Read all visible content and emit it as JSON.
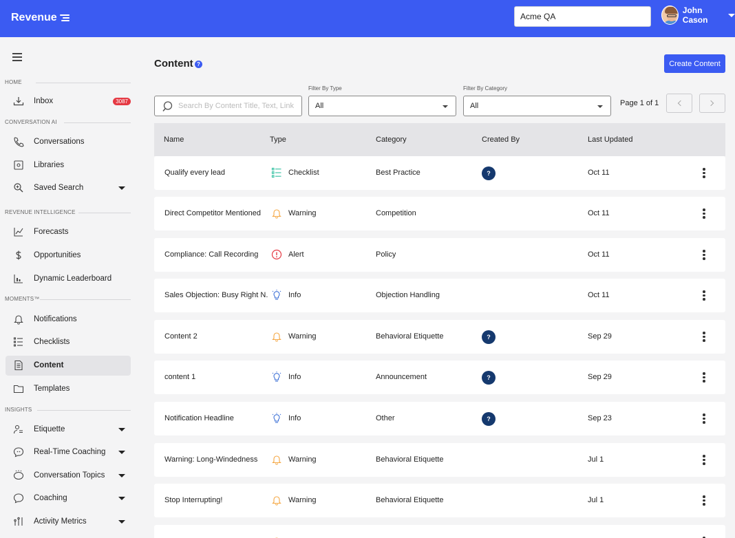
{
  "header": {
    "logo_text": "Revenue",
    "org_value": "Acme QA",
    "user_name": "John Cason"
  },
  "sidebar": {
    "sections": [
      "HOME",
      "CONVERSATION AI",
      "REVENUE INTELLIGENCE",
      "MOMENTS™",
      "INSIGHTS"
    ],
    "items": [
      {
        "label": "Inbox",
        "icon": "inbox-icon",
        "badge": "3087"
      },
      {
        "label": "Conversations",
        "icon": "phone-icon"
      },
      {
        "label": "Libraries",
        "icon": "library-icon"
      },
      {
        "label": "Saved Search",
        "icon": "search-icon",
        "has_caret": true
      },
      {
        "label": "Forecasts",
        "icon": "line-chart-icon"
      },
      {
        "label": "Opportunities",
        "icon": "dollar-icon"
      },
      {
        "label": "Dynamic Leaderboard",
        "icon": "bar-chart-icon"
      },
      {
        "label": "Notifications",
        "icon": "bell-icon"
      },
      {
        "label": "Checklists",
        "icon": "checklist-icon"
      },
      {
        "label": "Content",
        "icon": "document-icon",
        "active": true
      },
      {
        "label": "Templates",
        "icon": "folder-icon"
      },
      {
        "label": "Etiquette",
        "icon": "etiquette-icon",
        "has_caret": true
      },
      {
        "label": "Real-Time Coaching",
        "icon": "chat-icon",
        "has_caret": true
      },
      {
        "label": "Conversation Topics",
        "icon": "topics-icon",
        "has_caret": true
      },
      {
        "label": "Coaching",
        "icon": "coaching-icon",
        "has_caret": true
      },
      {
        "label": "Activity Metrics",
        "icon": "metrics-icon",
        "has_caret": true
      }
    ]
  },
  "main": {
    "title": "Content",
    "create_button": "Create Content",
    "search_placeholder": "Search By Content Title, Text, Link",
    "filter_type_label": "Filter By Type",
    "filter_type_value": "All",
    "filter_category_label": "Filter By Category",
    "filter_category_value": "All",
    "page_info": "Page 1 of 1"
  },
  "table": {
    "columns": [
      "Name",
      "Type",
      "Category",
      "Created By",
      "Last Updated"
    ],
    "rows": [
      {
        "name": "Qualify every lead",
        "type": "Checklist",
        "type_icon": "checklist-icon",
        "category": "Best Practice",
        "created_by": "?",
        "updated": "Oct 11"
      },
      {
        "name": "Direct Competitor Mentioned",
        "type": "Warning",
        "type_icon": "bell-icon",
        "category": "Competition",
        "created_by": "",
        "updated": "Oct 11"
      },
      {
        "name": "Compliance: Call Recording",
        "type": "Alert",
        "type_icon": "alert-icon",
        "category": "Policy",
        "created_by": "",
        "updated": "Oct 11"
      },
      {
        "name": "Sales Objection: Busy Right N...",
        "type": "Info",
        "type_icon": "lightbulb-icon",
        "category": "Objection Handling",
        "created_by": "",
        "updated": "Oct 11"
      },
      {
        "name": "Content 2",
        "type": "Warning",
        "type_icon": "bell-icon",
        "category": "Behavioral Etiquette",
        "created_by": "?",
        "updated": "Sep 29"
      },
      {
        "name": "content 1",
        "type": "Info",
        "type_icon": "lightbulb-icon",
        "category": "Announcement",
        "created_by": "?",
        "updated": "Sep 29"
      },
      {
        "name": "Notification Headline",
        "type": "Info",
        "type_icon": "lightbulb-icon",
        "category": "Other",
        "created_by": "?",
        "updated": "Sep 23"
      },
      {
        "name": "Warning: Long-Windedness",
        "type": "Warning",
        "type_icon": "bell-icon",
        "category": "Behavioral Etiquette",
        "created_by": "",
        "updated": "Jul 1"
      },
      {
        "name": "Stop Interrupting!",
        "type": "Warning",
        "type_icon": "bell-icon",
        "category": "Behavioral Etiquette",
        "created_by": "",
        "updated": "Jul 1"
      },
      {
        "name": "",
        "type": "",
        "type_icon": "bell-icon",
        "category": "",
        "created_by": "",
        "updated": ""
      }
    ]
  },
  "colors": {
    "brand": "#3b5bf2",
    "badge": "#e53943",
    "warning": "#f5a742",
    "alert": "#e53943",
    "info": "#3b6fd6",
    "checklist": "#2fbf9f",
    "created_by_badge": "#15396e"
  }
}
